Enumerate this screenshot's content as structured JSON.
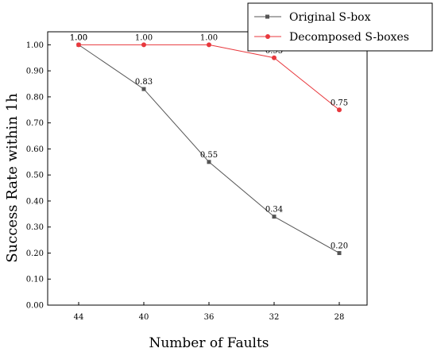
{
  "chart_data": {
    "type": "line",
    "title": "",
    "xlabel": "Number of Faults",
    "ylabel": "Success Rate within 1h",
    "categories": [
      "44",
      "40",
      "36",
      "32",
      "28"
    ],
    "ylim": [
      0,
      1.05
    ],
    "yticks": [
      "0.00",
      "0.10",
      "0.20",
      "0.30",
      "0.40",
      "0.50",
      "0.60",
      "0.70",
      "0.80",
      "0.90",
      "1.00"
    ],
    "grid": false,
    "legend_position": "top-right",
    "series": [
      {
        "name": "Original S-box",
        "values": [
          1.0,
          0.83,
          0.55,
          0.34,
          0.2
        ],
        "labels": [
          "1.00",
          "0.83",
          "0.55",
          "0.34",
          "0.20"
        ],
        "color": "#555555",
        "marker": "square"
      },
      {
        "name": "Decomposed S-boxes",
        "values": [
          1.0,
          1.0,
          1.0,
          0.95,
          0.75
        ],
        "labels": [
          "1.00",
          "1.00",
          "1.00",
          "0.95",
          "0.75"
        ],
        "color": "#e8383d",
        "marker": "circle"
      }
    ]
  }
}
